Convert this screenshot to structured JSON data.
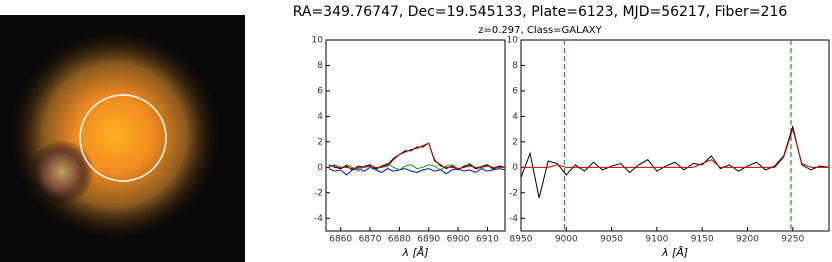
{
  "header": {
    "title": "RA=349.76747, Dec=19.545133, Plate=6123, MJD=56217, Fiber=216",
    "subtitle": "z=0.297, Class=GALAXY"
  },
  "chart_data": [
    {
      "type": "line",
      "x_label": "λ [Å]",
      "x": [
        6856,
        6858,
        6860,
        6862,
        6864,
        6866,
        6868,
        6870,
        6872,
        6874,
        6876,
        6878,
        6880,
        6882,
        6884,
        6886,
        6888,
        6890,
        6892,
        6894,
        6896,
        6898,
        6900,
        6902,
        6904,
        6906,
        6908,
        6910,
        6912,
        6914,
        6916
      ],
      "series": [
        {
          "color": "#0000ff",
          "values": [
            -0.1,
            -0.3,
            -0.2,
            -0.6,
            -0.2,
            -0.1,
            -0.3,
            0.0,
            -0.2,
            -0.4,
            -0.1,
            -0.3,
            -0.2,
            -0.1,
            -0.3,
            -0.4,
            -0.2,
            -0.1,
            -0.3,
            -0.2,
            -0.5,
            -0.2,
            -0.1,
            -0.3,
            -0.2,
            -0.4,
            -0.1,
            -0.3,
            -0.2,
            -0.1,
            -0.2
          ]
        },
        {
          "color": "#00a000",
          "values": [
            0.1,
            0.2,
            -0.1,
            0.2,
            0.0,
            -0.3,
            0.1,
            0.2,
            -0.2,
            0.1,
            0.3,
            0.0,
            -0.2,
            0.1,
            0.2,
            -0.1,
            0.0,
            0.2,
            0.1,
            -0.2,
            0.1,
            0.2,
            -0.1,
            0.0,
            0.3,
            -0.1,
            0.1,
            0.2,
            -0.2,
            0.1,
            0.0
          ]
        },
        {
          "color": "#000000",
          "values": [
            0.2,
            0.0,
            -0.1,
            0.1,
            -0.2,
            0.1,
            0.0,
            0.2,
            -0.1,
            0.1,
            0.2,
            0.7,
            1.0,
            1.3,
            1.3,
            1.6,
            1.6,
            1.9,
            0.5,
            0.2,
            -0.1,
            0.1,
            -0.2,
            0.1,
            0.2,
            -0.1,
            0.0,
            0.2,
            -0.1,
            0.1,
            0.0
          ]
        },
        {
          "color": "#d00000",
          "values": [
            0.1,
            0.1,
            0,
            0,
            -0.1,
            0,
            0,
            0.1,
            0,
            0,
            0.1,
            0.6,
            1.0,
            1.2,
            1.4,
            1.5,
            1.7,
            1.9,
            0.6,
            0.1,
            0,
            0,
            -0.1,
            0,
            0.1,
            0,
            0,
            0.1,
            0,
            0,
            0
          ]
        }
      ],
      "xlim": [
        6855,
        6916
      ],
      "xticks": [
        6860,
        6870,
        6880,
        6890,
        6900,
        6910
      ],
      "ylim": [
        -5,
        10
      ],
      "yticks": [
        -4,
        -2,
        0,
        2,
        4,
        6,
        8,
        10
      ]
    },
    {
      "type": "line",
      "x_label": "λ [Å]",
      "x": [
        8950,
        8960,
        8970,
        8980,
        8990,
        9000,
        9010,
        9020,
        9030,
        9040,
        9050,
        9060,
        9070,
        9080,
        9090,
        9100,
        9110,
        9120,
        9130,
        9140,
        9150,
        9160,
        9170,
        9180,
        9190,
        9200,
        9210,
        9220,
        9230,
        9240,
        9250,
        9260,
        9270,
        9280,
        9290
      ],
      "series": [
        {
          "color": "#000000",
          "values": [
            -0.8,
            1.1,
            -2.4,
            0.5,
            0.3,
            -0.6,
            0.2,
            -0.3,
            0.4,
            -0.2,
            0.1,
            0.3,
            -0.4,
            0.2,
            0.6,
            -0.3,
            0.1,
            0.4,
            -0.2,
            0.3,
            0.2,
            0.9,
            -0.1,
            0.2,
            -0.3,
            0.1,
            0.4,
            -0.2,
            0.1,
            0.9,
            3.2,
            0.2,
            -0.2,
            0.1,
            0.0
          ]
        },
        {
          "color": "#d00000",
          "values": [
            0,
            0,
            0,
            0,
            0.2,
            0,
            0,
            0,
            0,
            0,
            0,
            0,
            0,
            0,
            0,
            0,
            0,
            0,
            0,
            0,
            0.3,
            0.6,
            0,
            0,
            0,
            0,
            0,
            0,
            0,
            0.8,
            3.0,
            0.3,
            0,
            0,
            0
          ]
        }
      ],
      "vlines": [
        8998,
        9248
      ],
      "vline_color": "#2ca02c",
      "xlim": [
        8950,
        9290
      ],
      "xticks": [
        8950,
        9000,
        9050,
        9100,
        9150,
        9200,
        9250
      ],
      "ylim": [
        -5,
        10
      ],
      "yticks": [
        -4,
        -2,
        0,
        2,
        4,
        6,
        8,
        10
      ]
    }
  ]
}
